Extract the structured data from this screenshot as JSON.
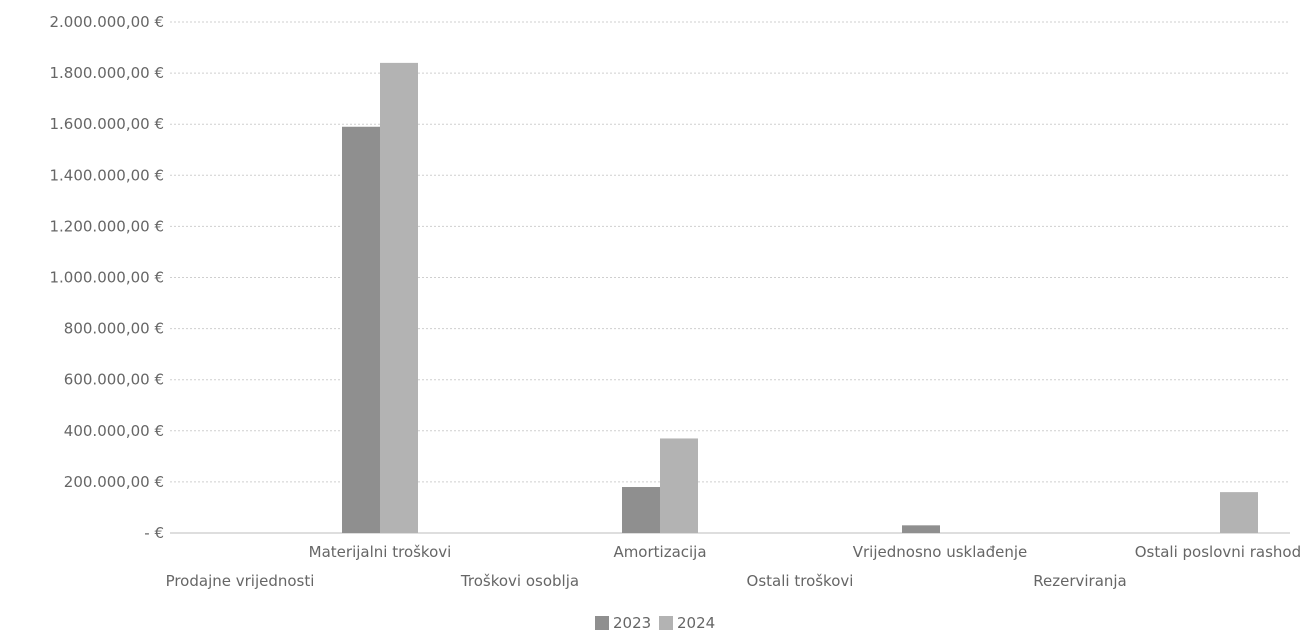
{
  "chart_data": {
    "type": "bar",
    "categories": [
      "Prodajne vrijednosti",
      "Materijalni troškovi",
      "Troškovi osoblja",
      "Amortizacija",
      "Ostali troškovi",
      "Vrijednosno usklađenje",
      "Rezerviranja",
      "Ostali poslovni rashodi"
    ],
    "series": [
      {
        "name": "2023",
        "color": "#8f8f8f",
        "values": [
          0,
          1590000,
          0,
          180000,
          0,
          30000,
          0,
          0
        ]
      },
      {
        "name": "2024",
        "color": "#b3b3b3",
        "values": [
          0,
          1840000,
          0,
          370000,
          0,
          0,
          0,
          160000
        ]
      }
    ],
    "ylim": [
      0,
      2000000
    ],
    "yticks": [
      0,
      200000,
      400000,
      600000,
      800000,
      1000000,
      1200000,
      1400000,
      1600000,
      1800000,
      2000000
    ],
    "ytick_labels": [
      "- €",
      "200.000,00 €",
      "400.000,00 €",
      "600.000,00 €",
      "800.000,00 €",
      "1.000.000,00 €",
      "1.200.000,00 €",
      "1.400.000,00 €",
      "1.600.000,00 €",
      "1.800.000,00 €",
      "2.000.000,00 €"
    ],
    "grid": true,
    "legend": "bottom",
    "legend_labels": [
      "2023",
      "2024"
    ],
    "title": "",
    "xlabel": "",
    "ylabel": ""
  }
}
